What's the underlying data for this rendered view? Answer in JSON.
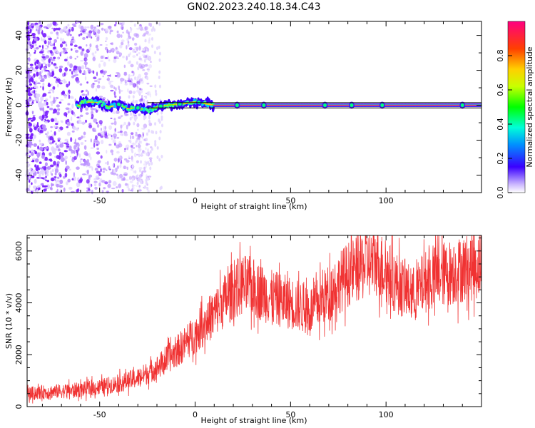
{
  "title": "GN02.2023.240.18.34.C43",
  "chart_data": [
    {
      "type": "heatmap",
      "xlabel": "Height of straight line (km)",
      "ylabel": "Frequency (Hz)",
      "xlim": [
        -88,
        150
      ],
      "ylim": [
        -50,
        48
      ],
      "x_ticks": [
        -50,
        0,
        50,
        100
      ],
      "y_ticks": [
        -40,
        -20,
        0,
        20,
        40
      ],
      "colorbar": {
        "label": "Normalized spectral amplitude",
        "range": [
          0.0,
          1.0
        ],
        "ticks": [
          0.0,
          0.2,
          0.4,
          0.6,
          0.8
        ],
        "colormap": "rainbow"
      },
      "reference_lines_hz": [
        -1.5,
        1.5
      ],
      "signal_track": [
        {
          "x": -60,
          "freq": 2.0
        },
        {
          "x": -50,
          "freq": 1.5
        },
        {
          "x": -45,
          "freq": -1.0
        },
        {
          "x": -40,
          "freq": 0.5
        },
        {
          "x": -35,
          "freq": -2.0
        },
        {
          "x": -30,
          "freq": -1.5
        },
        {
          "x": -25,
          "freq": -3.0
        },
        {
          "x": -20,
          "freq": -1.0
        },
        {
          "x": -15,
          "freq": 0.0
        },
        {
          "x": -10,
          "freq": 0.5
        },
        {
          "x": -5,
          "freq": 1.0
        },
        {
          "x": 0,
          "freq": 2.0
        },
        {
          "x": 5,
          "freq": 1.0
        },
        {
          "x": 10,
          "freq": 0.0
        },
        {
          "x": 150,
          "freq": 0.0
        }
      ]
    },
    {
      "type": "line",
      "xlabel": "Height of straight line (km)",
      "ylabel": "SNR (10 * v/v)",
      "xlim": [
        -88,
        150
      ],
      "ylim": [
        0,
        6600
      ],
      "x_ticks": [
        -50,
        0,
        50,
        100
      ],
      "y_ticks": [
        0,
        2000,
        4000,
        6000
      ],
      "line_color": "#f03232",
      "series": [
        {
          "x": [
            -88,
            -80,
            -70,
            -60,
            -50,
            -40,
            -30,
            -20,
            -10,
            0,
            10,
            20,
            25,
            30,
            35,
            40,
            50,
            60,
            65,
            70,
            80,
            90,
            95,
            100,
            105,
            110,
            115,
            120,
            130,
            140,
            150
          ],
          "y": [
            500,
            550,
            600,
            650,
            750,
            900,
            1100,
            1500,
            2100,
            2800,
            3600,
            4500,
            4700,
            4600,
            4400,
            4200,
            4000,
            3700,
            4000,
            4400,
            5100,
            5500,
            5600,
            5200,
            4800,
            4500,
            4300,
            4800,
            5100,
            5300,
            5500
          ]
        }
      ]
    }
  ]
}
